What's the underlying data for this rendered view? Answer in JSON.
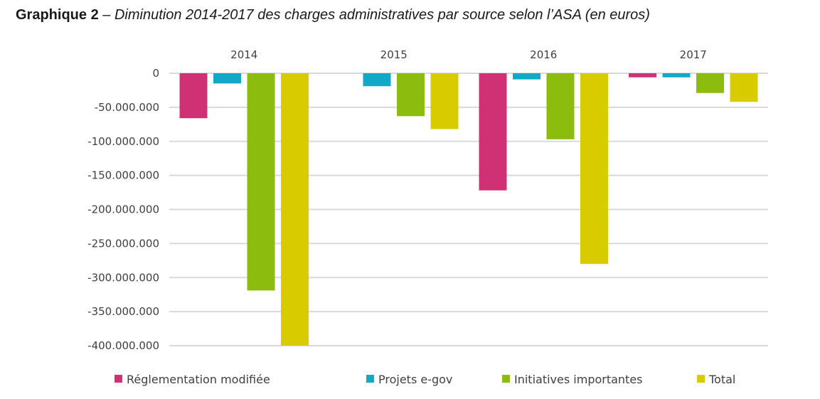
{
  "title": {
    "prefix": "Graphique 2",
    "separator": " – ",
    "text": "Diminution 2014-2017 des charges administratives par source selon l’ASA (en euros)"
  },
  "chart_data": {
    "type": "bar",
    "categories": [
      "2014",
      "2015",
      "2016",
      "2017"
    ],
    "series": [
      {
        "name": "Réglementation modifiée",
        "color": "#d03174",
        "values": [
          -66000000,
          0,
          -172000000,
          -6000000
        ]
      },
      {
        "name": "Projets e-gov",
        "color": "#12a8c7",
        "values": [
          -15000000,
          -19000000,
          -9000000,
          -6000000
        ]
      },
      {
        "name": "Initiatives importantes",
        "color": "#8cbd0e",
        "values": [
          -319000000,
          -63000000,
          -97000000,
          -29000000
        ]
      },
      {
        "name": "Total",
        "color": "#d8cc00",
        "values": [
          -400000000,
          -82000000,
          -280000000,
          -42000000
        ]
      }
    ],
    "ylim": [
      -400000000,
      0
    ],
    "yticks": [
      {
        "value": 0,
        "label": "0"
      },
      {
        "value": -50000000,
        "label": "-50.000.000"
      },
      {
        "value": -100000000,
        "label": "-100.000.000"
      },
      {
        "value": -150000000,
        "label": "-150.000.000"
      },
      {
        "value": -200000000,
        "label": "-200.000.000"
      },
      {
        "value": -250000000,
        "label": "-250.000.000"
      },
      {
        "value": -300000000,
        "label": "-300.000.000"
      },
      {
        "value": -350000000,
        "label": "-350.000.000"
      },
      {
        "value": -400000000,
        "label": "-400.000.000"
      }
    ],
    "xlabel": "",
    "ylabel": "",
    "grid": true,
    "category_labels_position": "top",
    "legend_position": "bottom"
  }
}
